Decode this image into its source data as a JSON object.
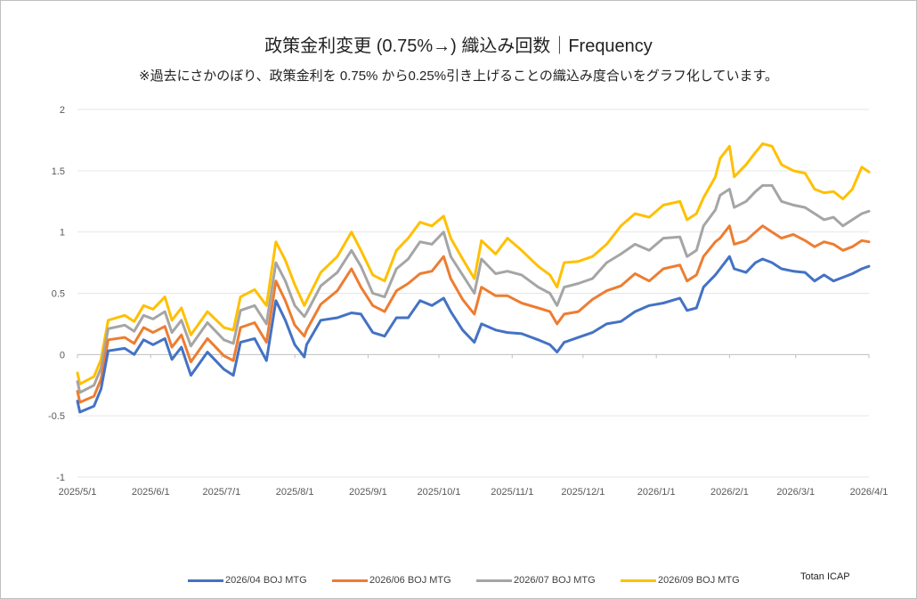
{
  "chart_data": {
    "type": "line",
    "title": "政策金利変更 (0.75%→) 織込み回数｜Frequency",
    "subtitle": "※過去にさかのぼり、政策金利を 0.75% から0.25%引き上げることの織込み度合いをグラフ化しています。",
    "x_unit": "days since 2025/5/1",
    "xlim": [
      0,
      335
    ],
    "ylim": [
      -1,
      2
    ],
    "grid": true,
    "legend_position": "bottom",
    "credit": "Totan ICAP",
    "x_ticks": [
      {
        "day": 0,
        "label": "2025/5/1"
      },
      {
        "day": 31,
        "label": "2025/6/1"
      },
      {
        "day": 61,
        "label": "2025/7/1"
      },
      {
        "day": 92,
        "label": "2025/8/1"
      },
      {
        "day": 123,
        "label": "2025/9/1"
      },
      {
        "day": 153,
        "label": "2025/10/1"
      },
      {
        "day": 184,
        "label": "2025/11/1"
      },
      {
        "day": 214,
        "label": "2025/12/1"
      },
      {
        "day": 245,
        "label": "2026/1/1"
      },
      {
        "day": 276,
        "label": "2026/2/1"
      },
      {
        "day": 304,
        "label": "2026/3/1"
      },
      {
        "day": 335,
        "label": "2026/4/1"
      }
    ],
    "y_ticks": [
      {
        "v": 2,
        "label": "2"
      },
      {
        "v": 1.5,
        "label": "1.5"
      },
      {
        "v": 1,
        "label": "1"
      },
      {
        "v": 0.5,
        "label": "0.5"
      },
      {
        "v": 0,
        "label": "0"
      },
      {
        "v": -0.5,
        "label": "-0.5"
      },
      {
        "v": -1,
        "label": "-1"
      }
    ],
    "x": [
      0,
      1,
      7,
      10,
      13,
      20,
      24,
      28,
      32,
      37,
      40,
      44,
      48,
      55,
      62,
      66,
      69,
      75,
      80,
      84,
      88,
      92,
      96,
      97,
      103,
      110,
      116,
      120,
      125,
      130,
      135,
      140,
      145,
      150,
      155,
      158,
      163,
      168,
      171,
      177,
      182,
      188,
      195,
      200,
      203,
      206,
      212,
      218,
      224,
      230,
      236,
      242,
      248,
      255,
      258,
      262,
      265,
      270,
      272,
      276,
      278,
      283,
      287,
      290,
      294,
      298,
      303,
      308,
      312,
      316,
      320,
      324,
      328,
      332,
      335
    ],
    "series": [
      {
        "name": "2026/04 BOJ MTG",
        "color": "#4472c4",
        "values": [
          -0.38,
          -0.47,
          -0.42,
          -0.28,
          0.03,
          0.05,
          0.0,
          0.12,
          0.08,
          0.13,
          -0.04,
          0.06,
          -0.17,
          0.02,
          -0.12,
          -0.17,
          0.1,
          0.13,
          -0.05,
          0.44,
          0.28,
          0.08,
          -0.02,
          0.08,
          0.28,
          0.3,
          0.34,
          0.33,
          0.18,
          0.15,
          0.3,
          0.3,
          0.44,
          0.4,
          0.46,
          0.35,
          0.2,
          0.1,
          0.25,
          0.2,
          0.18,
          0.17,
          0.12,
          0.08,
          0.02,
          0.1,
          0.14,
          0.18,
          0.25,
          0.27,
          0.35,
          0.4,
          0.42,
          0.46,
          0.36,
          0.38,
          0.55,
          0.65,
          0.7,
          0.8,
          0.7,
          0.67,
          0.75,
          0.78,
          0.75,
          0.7,
          0.68,
          0.67,
          0.6,
          0.65,
          0.6,
          0.63,
          0.66,
          0.7,
          0.72
        ]
      },
      {
        "name": "2026/06 BOJ MTG",
        "color": "#ed7d31",
        "values": [
          -0.3,
          -0.39,
          -0.34,
          -0.2,
          0.12,
          0.14,
          0.09,
          0.22,
          0.18,
          0.23,
          0.06,
          0.16,
          -0.06,
          0.13,
          -0.01,
          -0.05,
          0.22,
          0.26,
          0.1,
          0.6,
          0.44,
          0.24,
          0.15,
          0.2,
          0.41,
          0.52,
          0.7,
          0.55,
          0.4,
          0.35,
          0.52,
          0.58,
          0.66,
          0.68,
          0.8,
          0.62,
          0.45,
          0.33,
          0.55,
          0.48,
          0.48,
          0.42,
          0.38,
          0.35,
          0.25,
          0.33,
          0.35,
          0.45,
          0.52,
          0.56,
          0.66,
          0.6,
          0.7,
          0.73,
          0.6,
          0.65,
          0.8,
          0.92,
          0.95,
          1.05,
          0.9,
          0.93,
          1.0,
          1.05,
          1.0,
          0.95,
          0.98,
          0.93,
          0.88,
          0.92,
          0.9,
          0.85,
          0.88,
          0.93,
          0.92
        ]
      },
      {
        "name": "2026/07 BOJ MTG",
        "color": "#a5a5a5",
        "values": [
          -0.22,
          -0.31,
          -0.25,
          -0.11,
          0.21,
          0.24,
          0.19,
          0.32,
          0.29,
          0.35,
          0.18,
          0.28,
          0.07,
          0.26,
          0.12,
          0.09,
          0.36,
          0.4,
          0.25,
          0.75,
          0.6,
          0.4,
          0.31,
          0.34,
          0.56,
          0.67,
          0.85,
          0.72,
          0.5,
          0.47,
          0.7,
          0.78,
          0.92,
          0.9,
          1.0,
          0.8,
          0.65,
          0.5,
          0.78,
          0.66,
          0.68,
          0.65,
          0.55,
          0.5,
          0.4,
          0.55,
          0.58,
          0.62,
          0.75,
          0.82,
          0.9,
          0.85,
          0.95,
          0.96,
          0.8,
          0.85,
          1.05,
          1.18,
          1.3,
          1.35,
          1.2,
          1.25,
          1.33,
          1.38,
          1.38,
          1.25,
          1.22,
          1.2,
          1.15,
          1.1,
          1.12,
          1.05,
          1.1,
          1.15,
          1.17
        ]
      },
      {
        "name": "2026/09 BOJ MTG",
        "color": "#ffc000",
        "values": [
          -0.15,
          -0.24,
          -0.18,
          -0.04,
          0.28,
          0.32,
          0.27,
          0.4,
          0.37,
          0.47,
          0.28,
          0.38,
          0.16,
          0.35,
          0.22,
          0.2,
          0.47,
          0.53,
          0.4,
          0.92,
          0.77,
          0.57,
          0.4,
          0.44,
          0.67,
          0.8,
          1.0,
          0.85,
          0.65,
          0.6,
          0.85,
          0.95,
          1.08,
          1.05,
          1.13,
          0.95,
          0.78,
          0.62,
          0.93,
          0.82,
          0.95,
          0.85,
          0.72,
          0.65,
          0.55,
          0.75,
          0.76,
          0.8,
          0.9,
          1.05,
          1.15,
          1.12,
          1.22,
          1.25,
          1.1,
          1.15,
          1.28,
          1.45,
          1.6,
          1.7,
          1.45,
          1.55,
          1.65,
          1.72,
          1.7,
          1.55,
          1.5,
          1.48,
          1.35,
          1.32,
          1.33,
          1.27,
          1.35,
          1.53,
          1.49
        ]
      }
    ]
  }
}
